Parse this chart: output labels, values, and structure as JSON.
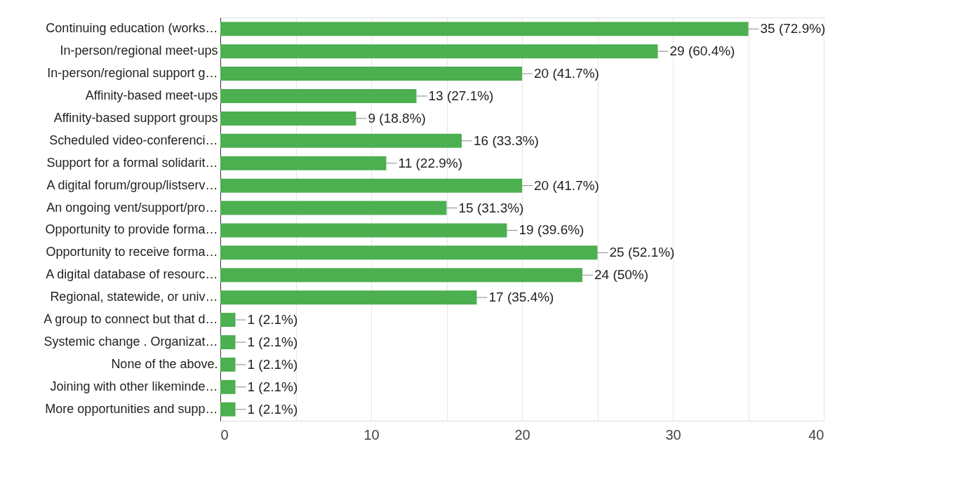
{
  "chart_data": {
    "type": "bar",
    "orientation": "horizontal",
    "categories": [
      "Continuing education (works…",
      "In-person/regional meet-ups",
      "In-person/regional support g…",
      "Affinity-based meet-ups",
      "Affinity-based support groups",
      "Scheduled video-conferenci…",
      "Support for a formal solidarit…",
      "A digital forum/group/listserv…",
      "An ongoing vent/support/pro…",
      "Opportunity to provide forma…",
      "Opportunity to receive forma…",
      "A digital database of resourc…",
      "Regional, statewide, or univ…",
      "A group to connect but that d…",
      "Systemic change . Organizat…",
      "None of the above.",
      "Joining with other likeminde…",
      "More opportunities and supp…"
    ],
    "values": [
      35,
      29,
      20,
      13,
      9,
      16,
      11,
      20,
      15,
      19,
      25,
      24,
      17,
      1,
      1,
      1,
      1,
      1
    ],
    "value_labels": [
      "35 (72.9%)",
      "29 (60.4%)",
      "20 (41.7%)",
      "13 (27.1%)",
      "9 (18.8%)",
      "16 (33.3%)",
      "11 (22.9%)",
      "20 (41.7%)",
      "15 (31.3%)",
      "19 (39.6%)",
      "25 (52.1%)",
      "24 (50%)",
      "17 (35.4%)",
      "1 (2.1%)",
      "1 (2.1%)",
      "1 (2.1%)",
      "1 (2.1%)",
      "1 (2.1%)"
    ],
    "color": "#4caf50",
    "xlim": [
      0,
      40
    ],
    "xticks": [
      0,
      {
        "value": 5,
        "label": null
      },
      10,
      {
        "value": 15,
        "label": null
      },
      20,
      {
        "value": 25,
        "label": null
      },
      30,
      {
        "value": 35,
        "label": null
      },
      40
    ],
    "grid": true
  }
}
